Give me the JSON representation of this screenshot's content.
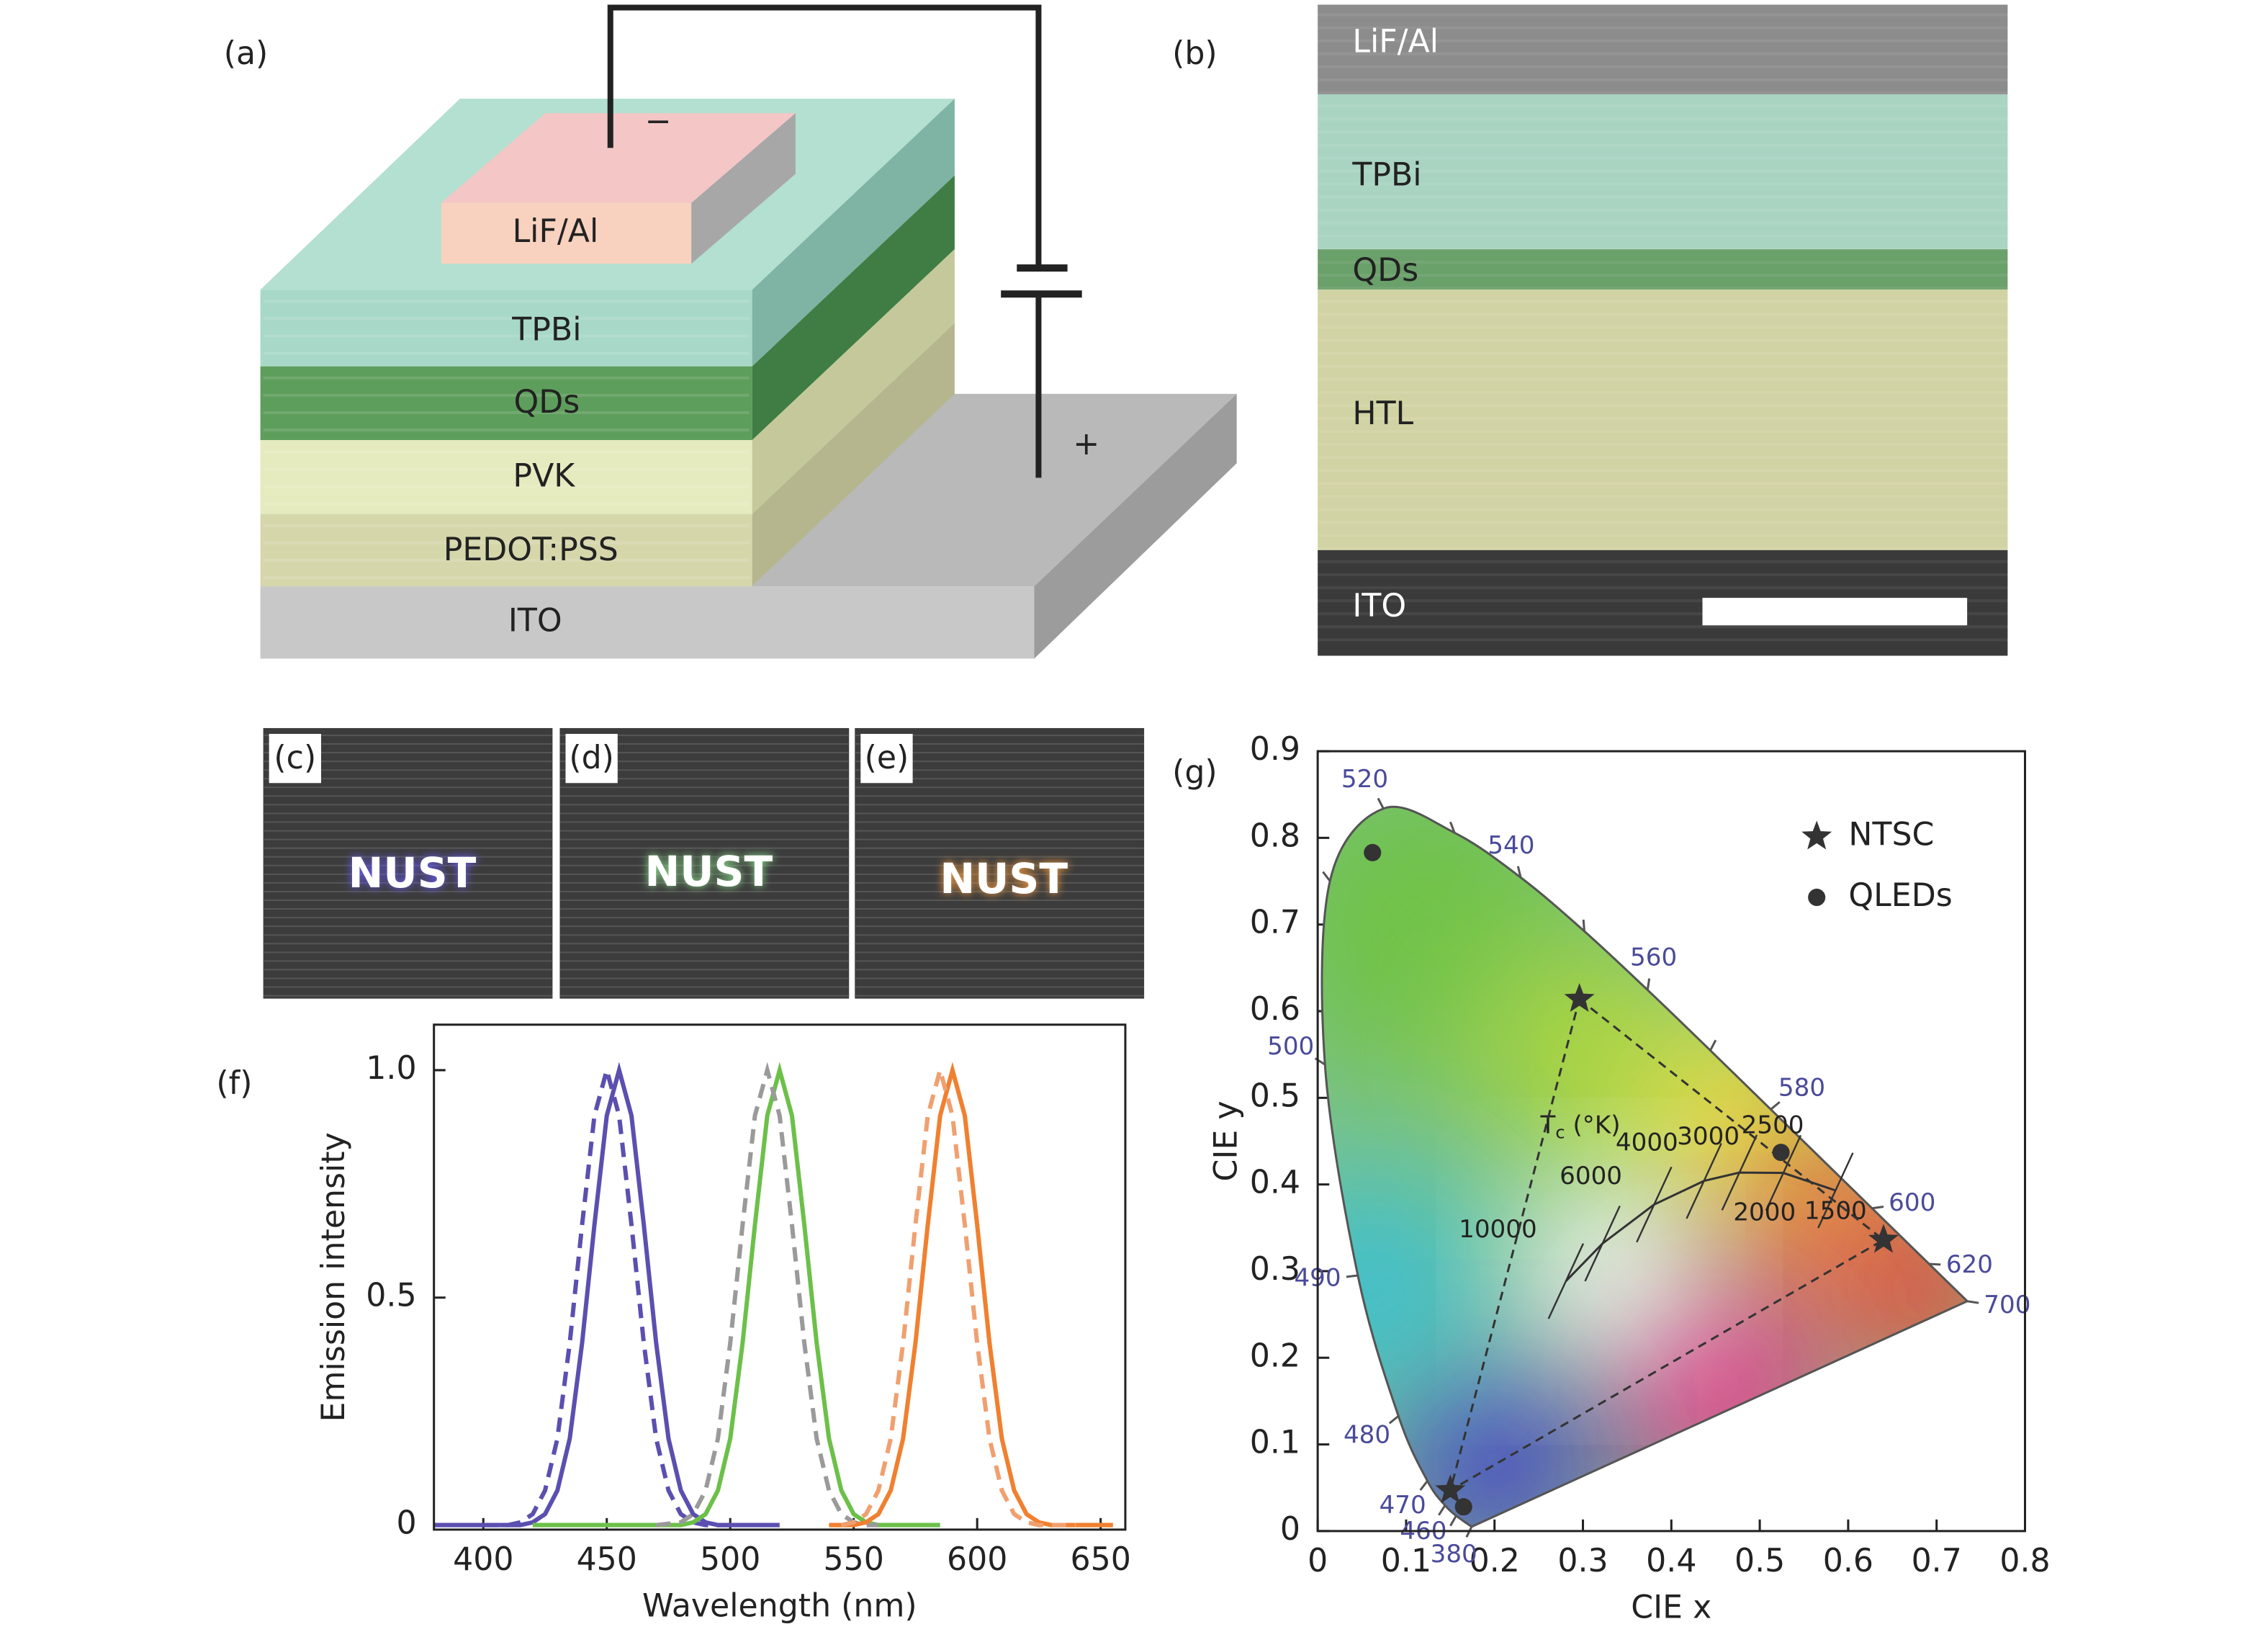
{
  "panels": {
    "a": "(a)",
    "b": "(b)",
    "f": "(f)",
    "g": "(g)"
  },
  "device": {
    "layers": [
      "LiF/Al",
      "TPBi",
      "QDs",
      "PVK",
      "PEDOT:PSS",
      "ITO"
    ],
    "minus": "−",
    "plus": "+"
  },
  "tem": {
    "layers": [
      "LiF/Al",
      "TPBi",
      "QDs",
      "HTL",
      "ITO"
    ]
  },
  "photos": [
    {
      "label": "(c)",
      "text": "NUST"
    },
    {
      "label": "(d)",
      "text": "NUST"
    },
    {
      "label": "(e)",
      "text": "NUST"
    }
  ],
  "chart_data": [
    {
      "type": "line",
      "xlabel": "Wavelength (nm)",
      "ylabel": "Emission intensity",
      "xlim": [
        380,
        660
      ],
      "xticks": [
        400,
        450,
        500,
        550,
        600,
        650
      ],
      "ylim": [
        -0.01,
        1.1
      ],
      "yticks": [
        0,
        0.5,
        {
          "value": 1,
          "label": "1.0"
        }
      ],
      "series": [
        {
          "color": "#5b4fb0",
          "dashed": false,
          "x": [
            380,
            415,
            420,
            425,
            430,
            435,
            440,
            445,
            450,
            455,
            460,
            465,
            470,
            475,
            480,
            485,
            490,
            495,
            520
          ],
          "values": [
            0,
            0,
            0.006,
            0.024,
            0.076,
            0.19,
            0.4,
            0.66,
            0.9,
            1,
            0.9,
            0.66,
            0.4,
            0.19,
            0.076,
            0.024,
            0.006,
            0,
            0
          ]
        },
        {
          "color": "#5b4fb0",
          "dashed": true,
          "x": [
            400,
            410,
            415,
            420,
            425,
            430,
            435,
            440,
            445,
            450,
            455,
            460,
            465,
            470,
            475,
            480,
            485,
            490,
            500
          ],
          "values": [
            0,
            0,
            0.006,
            0.024,
            0.076,
            0.19,
            0.4,
            0.66,
            0.9,
            1,
            0.9,
            0.66,
            0.4,
            0.19,
            0.076,
            0.024,
            0.006,
            0,
            0
          ]
        },
        {
          "color": "#6cc04a",
          "dashed": false,
          "x": [
            420,
            480,
            485,
            490,
            495,
            500,
            505,
            510,
            515,
            520,
            525,
            530,
            535,
            540,
            545,
            550,
            555,
            560,
            585
          ],
          "values": [
            0,
            0,
            0.006,
            0.024,
            0.076,
            0.19,
            0.4,
            0.66,
            0.9,
            1,
            0.9,
            0.66,
            0.4,
            0.19,
            0.076,
            0.024,
            0.006,
            0,
            0
          ]
        },
        {
          "color": "#9a9a9a",
          "dashed": true,
          "x": [
            470,
            480,
            485,
            490,
            495,
            500,
            505,
            510,
            515,
            520,
            525,
            530,
            535,
            540,
            545,
            550,
            555,
            560
          ],
          "values": [
            0,
            0.006,
            0.024,
            0.076,
            0.19,
            0.4,
            0.66,
            0.9,
            1,
            0.9,
            0.66,
            0.4,
            0.19,
            0.076,
            0.024,
            0.006,
            0,
            0
          ]
        },
        {
          "color": "#f08030",
          "dashed": false,
          "x": [
            540,
            550,
            555,
            560,
            565,
            570,
            575,
            580,
            585,
            590,
            595,
            600,
            605,
            610,
            615,
            620,
            625,
            630,
            655
          ],
          "values": [
            0,
            0,
            0.006,
            0.024,
            0.076,
            0.19,
            0.4,
            0.66,
            0.9,
            1,
            0.9,
            0.66,
            0.4,
            0.19,
            0.076,
            0.024,
            0.006,
            0,
            0
          ]
        },
        {
          "color": "#f0a070",
          "dashed": true,
          "x": [
            545,
            550,
            555,
            560,
            565,
            570,
            575,
            580,
            585,
            590,
            595,
            600,
            605,
            610,
            615,
            620,
            625,
            640
          ],
          "values": [
            0,
            0.006,
            0.024,
            0.076,
            0.19,
            0.4,
            0.66,
            0.9,
            1,
            0.9,
            0.66,
            0.4,
            0.19,
            0.076,
            0.024,
            0.006,
            0,
            0
          ]
        }
      ]
    },
    {
      "type": "scatter",
      "xlabel": "CIE x",
      "ylabel": "CIE y",
      "xlim": [
        0,
        0.8
      ],
      "xticks": [
        0,
        0.1,
        0.2,
        0.3,
        0.4,
        0.5,
        0.6,
        0.7,
        0.8
      ],
      "ylim": [
        0,
        0.9
      ],
      "yticks": [
        0,
        0.1,
        0.2,
        0.3,
        0.4,
        0.5,
        0.6,
        0.7,
        0.8,
        0.9
      ],
      "legend": "upper right",
      "series": [
        {
          "name": "NTSC",
          "marker": "star",
          "color": "#333333",
          "x": [
            0.296,
            0.64,
            0.15
          ],
          "values": [
            0.614,
            0.336,
            0.047
          ]
        },
        {
          "name": "QLEDs",
          "marker": "circle",
          "color": "#333333",
          "x": [
            0.062,
            0.524,
            0.165
          ],
          "values": [
            0.783,
            0.437,
            0.028
          ]
        }
      ],
      "locus": {
        "x": [
          0.1741,
          0.1566,
          0.144,
          0.1241,
          0.0913,
          0.0454,
          0.0082,
          0.0139,
          0.0743,
          0.1547,
          0.2296,
          0.3016,
          0.3731,
          0.4441,
          0.5125,
          0.627,
          0.6915,
          0.7347
        ],
        "y": [
          0.005,
          0.0177,
          0.0297,
          0.0578,
          0.1327,
          0.295,
          0.5384,
          0.7502,
          0.8338,
          0.8059,
          0.7543,
          0.6923,
          0.6245,
          0.5547,
          0.4866,
          0.3725,
          0.3083,
          0.2653
        ],
        "labels": [
          380,
          null,
          460,
          470,
          480,
          490,
          500,
          null,
          520,
          null,
          540,
          null,
          560,
          null,
          580,
          600,
          620,
          700
        ]
      },
      "planckian": {
        "symbol": "T",
        "subscript": "c",
        "unit": " (°K)",
        "x": [
          0.2807,
          0.3221,
          0.3805,
          0.4369,
          0.477,
          0.5267,
          0.5857
        ],
        "y": [
          0.2884,
          0.3318,
          0.3768,
          0.4041,
          0.4137,
          0.4133,
          0.3931
        ],
        "labels": [
          10000,
          6000,
          4000,
          3000,
          2500,
          2000,
          1500
        ]
      }
    }
  ]
}
